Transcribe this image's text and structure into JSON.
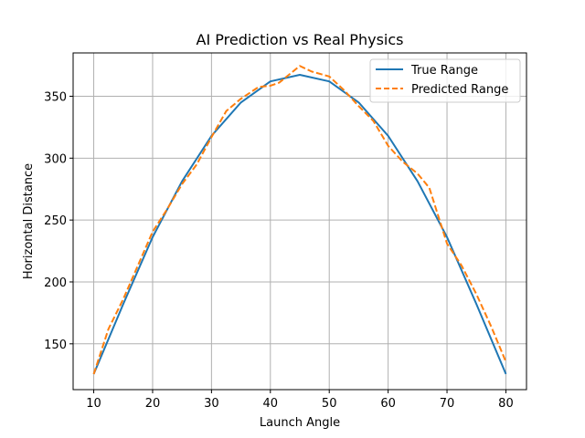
{
  "chart_data": {
    "type": "line",
    "title": "AI Prediction vs Real Physics",
    "xlabel": "Launch Angle",
    "ylabel": "Horizontal Distance",
    "xlim": [
      6.5,
      83.5
    ],
    "ylim": [
      113,
      385
    ],
    "xticks": [
      10,
      20,
      30,
      40,
      50,
      60,
      70,
      80
    ],
    "yticks": [
      150,
      200,
      250,
      300,
      350
    ],
    "grid": true,
    "legend_position": "top-right",
    "series": [
      {
        "name": "True Range",
        "color": "#1f77b4",
        "style": "solid",
        "x": [
          10,
          15,
          20,
          25,
          30,
          35,
          40,
          45,
          50,
          55,
          60,
          65,
          70,
          75,
          80
        ],
        "y": [
          125.6,
          182.0,
          236.2,
          281.3,
          318.0,
          345.0,
          362.0,
          367.3,
          362.0,
          345.0,
          318.0,
          281.3,
          236.2,
          182.0,
          125.6
        ]
      },
      {
        "name": "Predicted Range",
        "color": "#ff7f0e",
        "style": "dashed",
        "x": [
          10,
          12.5,
          15,
          20,
          22.5,
          25,
          27.5,
          30,
          32.5,
          35,
          38,
          40,
          41.5,
          45,
          47,
          50,
          52.5,
          55,
          57.5,
          60,
          62.5,
          65,
          67,
          70,
          72.5,
          75,
          77.5,
          80
        ],
        "y": [
          125.6,
          162.0,
          186.0,
          240.5,
          259.0,
          279.0,
          295.0,
          317.0,
          338.0,
          348.0,
          357.5,
          358.5,
          361.0,
          374.5,
          370.0,
          366.0,
          355.0,
          342.0,
          330.0,
          310.0,
          297.0,
          287.5,
          276.0,
          231.0,
          213.0,
          190.0,
          164.0,
          135.5
        ]
      }
    ]
  }
}
